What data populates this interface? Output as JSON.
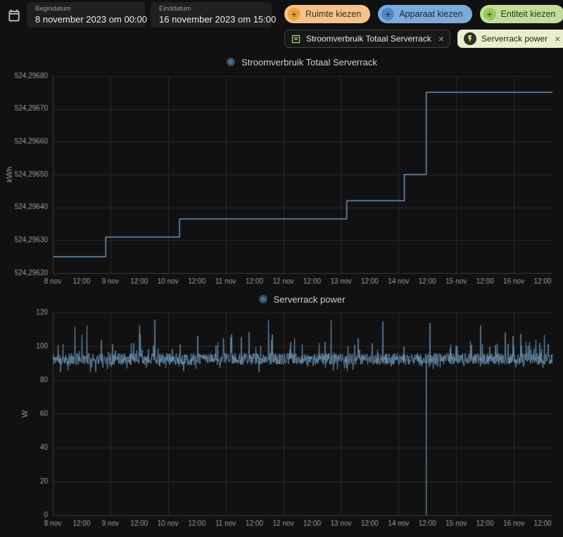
{
  "theme": {
    "bg": "#111111",
    "muted": "#9d9d9d",
    "grid": "#292929",
    "axis": "#3a3a3a",
    "line": "#6e96b8",
    "legend_dot_fill": "#4b738f",
    "legend_dot_edge": "#31506b"
  },
  "icons": {
    "plus": "+",
    "close": "×"
  },
  "toolbar": {
    "begin_label": "Begindatum",
    "begin_value": "8 november 2023 om 00:00",
    "end_label": "Einddatum",
    "end_value": "16 november 2023 om 15:00",
    "area_button": "Ruimte kiezen",
    "device_button": "Apparaat kiezen",
    "entity_button": "Entiteit kiezen",
    "chip_energy": "Stroomverbruik Totaal Serverrack",
    "chip_power": "Serverrack power"
  },
  "chart_data": [
    {
      "type": "line",
      "step": true,
      "title": "Stroomverbruik Totaal Serverrack",
      "ylabel": "kWh",
      "x_unit": "november 2023 (day.fraction)",
      "x_range": [
        8.0,
        16.67
      ],
      "ylim": [
        524.2962,
        524.2968
      ],
      "ytick_values": [
        524.2962,
        524.2963,
        524.2964,
        524.2965,
        524.2966,
        524.2967,
        524.2968
      ],
      "ytick_labels": [
        "524,29620",
        "524,29630",
        "524,29640",
        "524,29650",
        "524,29660",
        "524,29670",
        "524,29680"
      ],
      "xtick_values": [
        8,
        8.5,
        9,
        9.5,
        10,
        10.5,
        11,
        11.5,
        12,
        12.5,
        13,
        13.5,
        14,
        14.5,
        15,
        15.5,
        16,
        16.5
      ],
      "xtick_labels": [
        "8 nov",
        "12:00",
        "9 nov",
        "12:00",
        "10 nov",
        "12:00",
        "11 nov",
        "12:00",
        "12 nov",
        "12:00",
        "13 nov",
        "12:00",
        "14 nov",
        "12:00",
        "15 nov",
        "12:00",
        "16 nov",
        "12:00"
      ],
      "points_x": [
        8.0,
        8.92,
        8.92,
        10.2,
        10.2,
        13.1,
        13.1,
        14.1,
        14.1,
        14.48,
        14.48,
        16.67
      ],
      "points_y": [
        524.29625,
        524.29625,
        524.29631,
        524.29631,
        524.296365,
        524.296365,
        524.29642,
        524.29642,
        524.2965,
        524.2965,
        524.29675,
        524.29675
      ]
    },
    {
      "type": "line",
      "title": "Serverrack power",
      "ylabel": "W",
      "x_unit": "november 2023 (day.fraction)",
      "x_range": [
        8.0,
        16.67
      ],
      "ylim": [
        0,
        120
      ],
      "ytick_values": [
        0,
        20,
        40,
        60,
        80,
        100,
        120
      ],
      "ytick_labels": [
        "0",
        "20",
        "40",
        "60",
        "80",
        "100",
        "120"
      ],
      "xtick_values": [
        8,
        8.5,
        9,
        9.5,
        10,
        10.5,
        11,
        11.5,
        12,
        12.5,
        13,
        13.5,
        14,
        14.5,
        15,
        15.5,
        16,
        16.5
      ],
      "xtick_labels": [
        "8 nov",
        "12:00",
        "9 nov",
        "12:00",
        "10 nov",
        "12:00",
        "11 nov",
        "12:00",
        "12 nov",
        "12:00",
        "13 nov",
        "12:00",
        "14 nov",
        "12:00",
        "15 nov",
        "12:00",
        "16 nov",
        "12:00"
      ],
      "noise": {
        "seed": 11,
        "baseline": 92.5,
        "jitter": 3.5,
        "spike_chance": 0.05,
        "spike_min": 4,
        "spike_max": 12,
        "big_spike_chance": 0.012,
        "big_spike_min": 12,
        "big_spike_max": 24,
        "dip_chance": 0.05,
        "dip_min": 2,
        "dip_max": 5,
        "cap": 116,
        "dropout_x": 14.48,
        "dropout_value": 0
      }
    }
  ]
}
